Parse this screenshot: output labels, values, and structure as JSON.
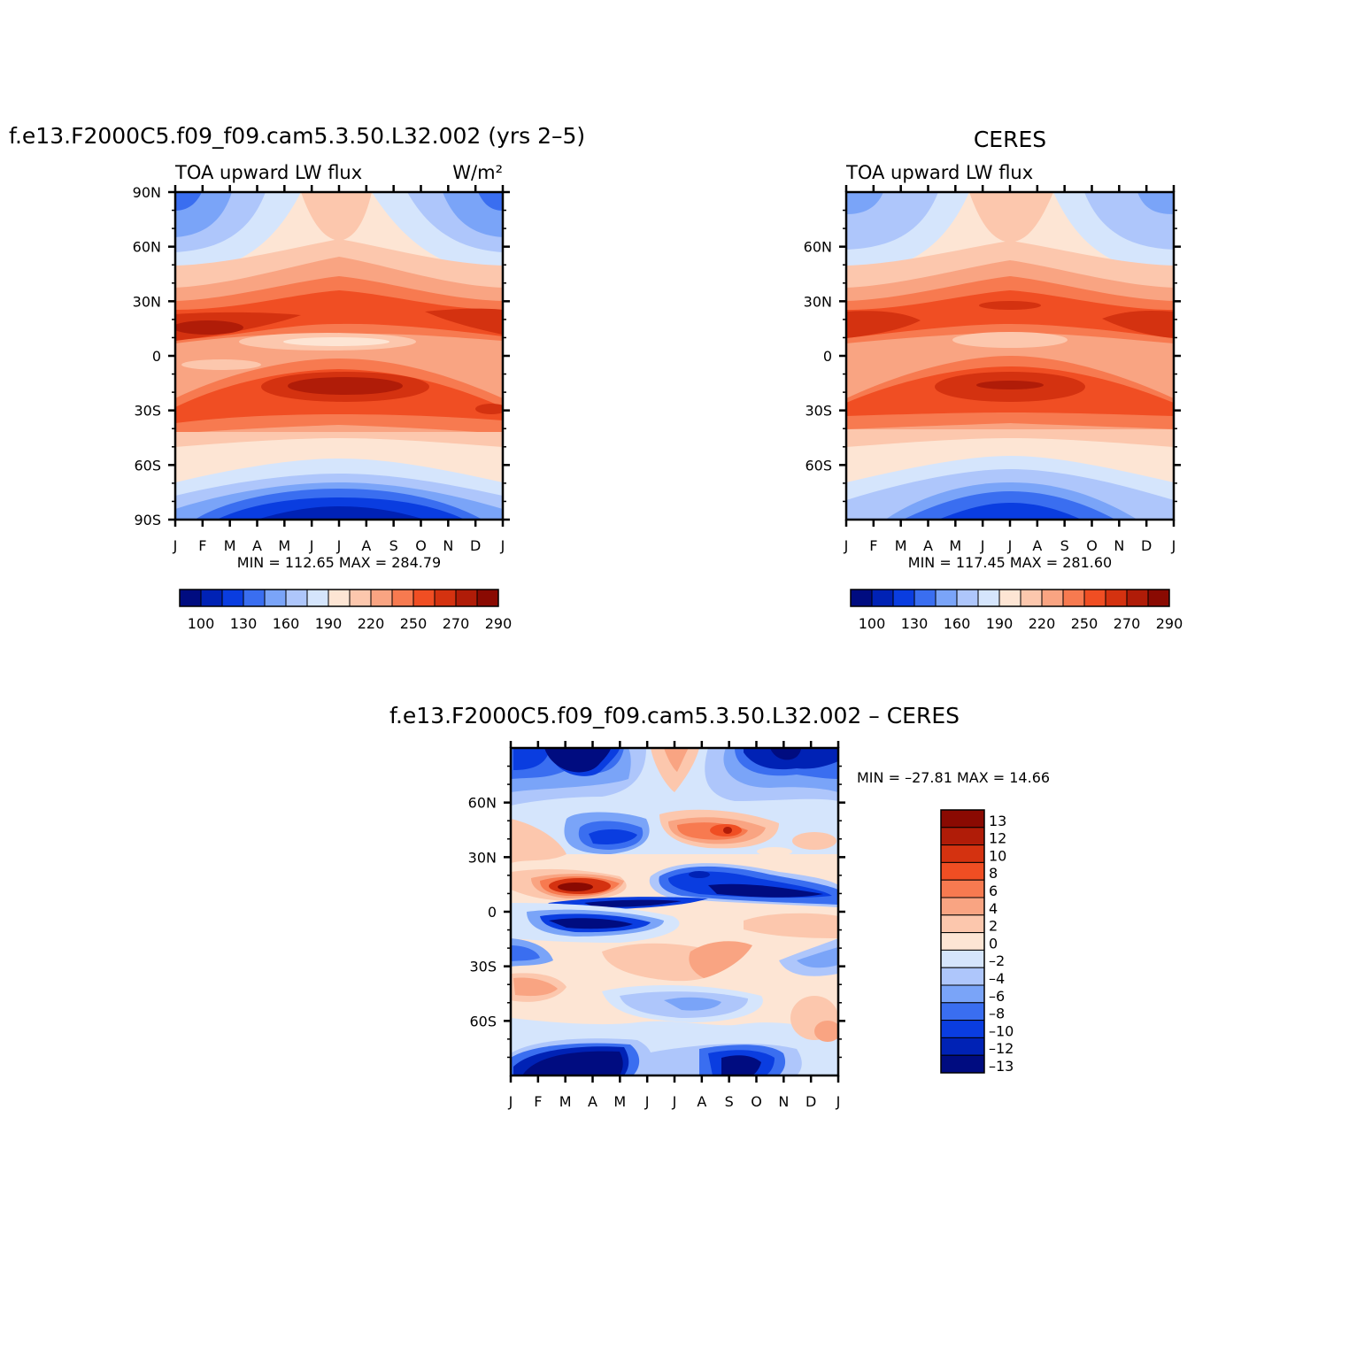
{
  "panel_model": {
    "title": "f.e13.F2000C5.f09_f09.cam5.3.50.L32.002 (yrs 2–5)",
    "subtitle_left": "TOA upward LW flux",
    "units": "W/m²",
    "min_max": "MIN =  112.65  MAX =  284.79",
    "min": 112.65,
    "max": 284.79
  },
  "panel_obs": {
    "title": "CERES",
    "subtitle_left": "TOA upward LW flux",
    "min_max": "MIN =  117.45  MAX =  281.60",
    "min": 117.45,
    "max": 281.6
  },
  "panel_diff": {
    "title": "f.e13.F2000C5.f09_f09.cam5.3.50.L32.002  –  CERES",
    "min_max": "MIN = –27.81  MAX =   14.66",
    "min": -27.81,
    "max": 14.66
  },
  "axes": {
    "months": [
      "J",
      "F",
      "M",
      "A",
      "M",
      "J",
      "J",
      "A",
      "S",
      "O",
      "N",
      "D",
      "J"
    ],
    "lat_labels_model": [
      "90N",
      "60N",
      "30N",
      "0",
      "30S",
      "60S",
      "90S"
    ],
    "lat_labels_obs": [
      "60N",
      "30N",
      "0",
      "30S",
      "60S"
    ],
    "lat_labels_diff": [
      "60N",
      "30N",
      "0",
      "30S",
      "60S"
    ]
  },
  "colorbar_abs": {
    "labels": [
      "100",
      "130",
      "160",
      "190",
      "220",
      "250",
      "270",
      "290"
    ],
    "colors": [
      "#000c80",
      "#0022b5",
      "#0a3de0",
      "#3a6ef0",
      "#7aa4f8",
      "#aec6fb",
      "#d5e5fc",
      "#fde5d4",
      "#fcc7ad",
      "#f9a482",
      "#f77a50",
      "#f04e23",
      "#d43210",
      "#b01c08",
      "#8a0a02"
    ]
  },
  "colorbar_diff": {
    "labels": [
      "13",
      "12",
      "10",
      "8",
      "6",
      "4",
      "2",
      "0",
      "–2",
      "–4",
      "–6",
      "–8",
      "–10",
      "–12",
      "–13"
    ],
    "colors": [
      "#8a0a02",
      "#b01c08",
      "#d43210",
      "#f04e23",
      "#f77a50",
      "#f9a482",
      "#fcc7ad",
      "#fde5d4",
      "#d5e5fc",
      "#aec6fb",
      "#7aa4f8",
      "#3a6ef0",
      "#0a3de0",
      "#0022b5",
      "#000c80"
    ]
  },
  "chart_data": [
    {
      "type": "heatmap",
      "title": "f.e13.F2000C5.f09_f09.cam5.3.50.L32.002 (yrs 2–5)",
      "variable": "TOA upward LW flux",
      "units": "W/m²",
      "x_categories": [
        "J",
        "F",
        "M",
        "A",
        "M",
        "J",
        "J",
        "A",
        "S",
        "O",
        "N",
        "D",
        "J"
      ],
      "y_range": [
        -90,
        90
      ],
      "min": 112.65,
      "max": 284.79
    },
    {
      "type": "heatmap",
      "title": "CERES",
      "variable": "TOA upward LW flux",
      "x_categories": [
        "J",
        "F",
        "M",
        "A",
        "M",
        "J",
        "J",
        "A",
        "S",
        "O",
        "N",
        "D",
        "J"
      ],
      "y_range": [
        -90,
        90
      ],
      "min": 117.45,
      "max": 281.6
    },
    {
      "type": "heatmap",
      "title": "f.e13.F2000C5.f09_f09.cam5.3.50.L32.002  –  CERES",
      "x_categories": [
        "J",
        "F",
        "M",
        "A",
        "M",
        "J",
        "J",
        "A",
        "S",
        "O",
        "N",
        "D",
        "J"
      ],
      "y_range": [
        -90,
        90
      ],
      "min": -27.81,
      "max": 14.66
    }
  ]
}
